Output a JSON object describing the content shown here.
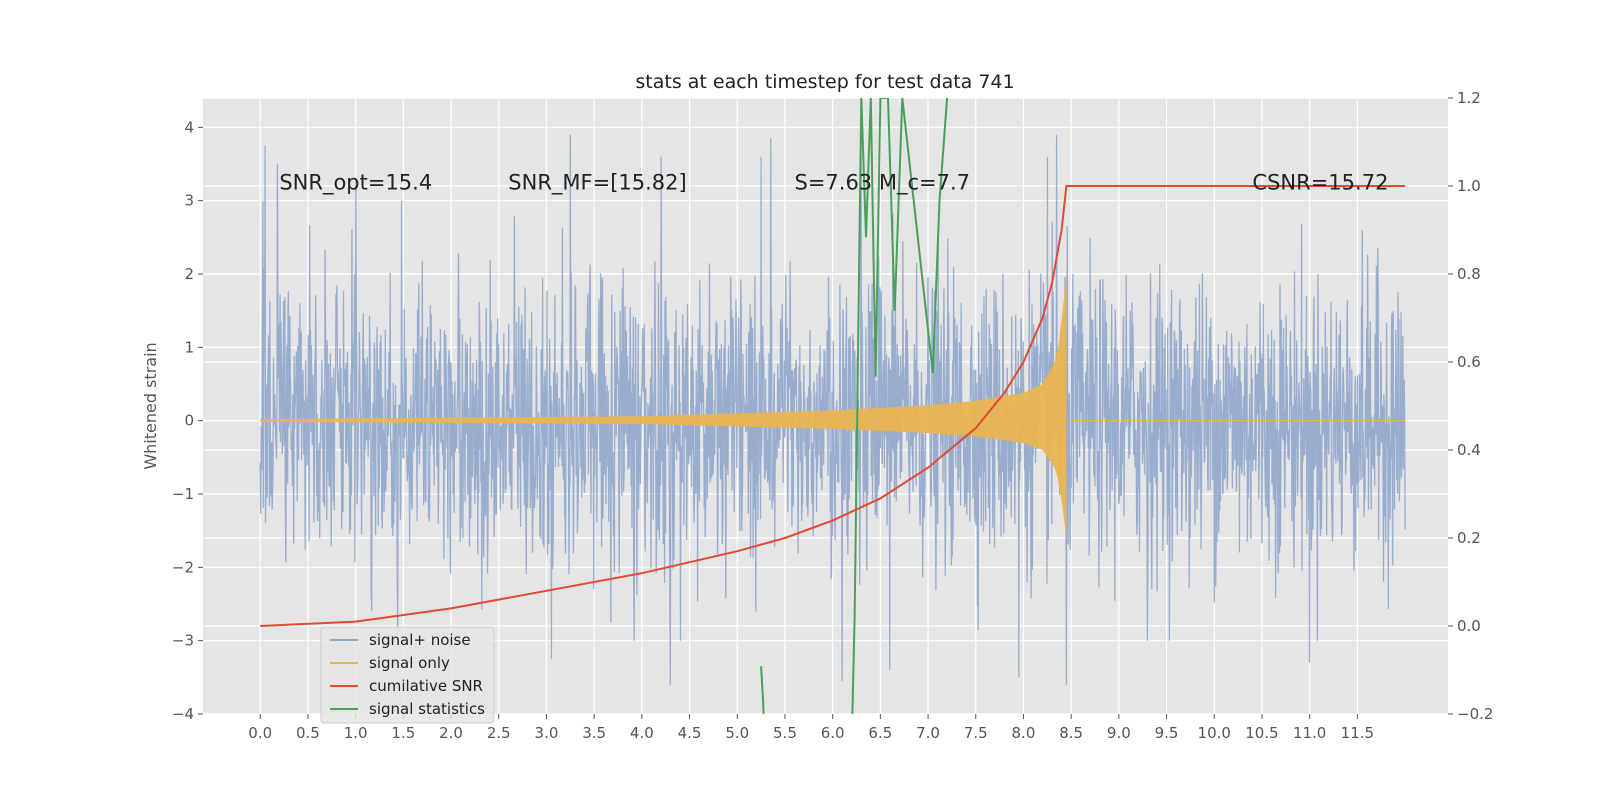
{
  "chart_data": {
    "type": "line",
    "title": "stats at each timestep for test data 741",
    "xlabel": "",
    "ylabel": "Whitened strain",
    "y2label": "",
    "xlim": [
      -0.6,
      12.45
    ],
    "ylim": [
      -4,
      4.4
    ],
    "y2lim": [
      -0.2,
      1.2
    ],
    "xticks": [
      0.0,
      0.5,
      1.0,
      1.5,
      2.0,
      2.5,
      3.0,
      3.5,
      4.0,
      4.5,
      5.0,
      5.5,
      6.0,
      6.5,
      7.0,
      7.5,
      8.0,
      8.5,
      9.0,
      9.5,
      10.0,
      10.5,
      11.0,
      11.5
    ],
    "xtick_labels": [
      "0.0",
      "0.5",
      "1.0",
      "1.5",
      "2.0",
      "2.5",
      "3.0",
      "3.5",
      "4.0",
      "4.5",
      "5.0",
      "5.5",
      "6.0",
      "6.5",
      "7.0",
      "7.5",
      "8.0",
      "8.5",
      "9.0",
      "9.5",
      "10.0",
      "10.5",
      "11.0",
      "11.5"
    ],
    "yticks": [
      -4,
      -3,
      -2,
      -1,
      0,
      1,
      2,
      3,
      4
    ],
    "ytick_labels": [
      "−4",
      "−3",
      "−2",
      "−1",
      "0",
      "1",
      "2",
      "3",
      "4"
    ],
    "y2ticks": [
      -0.2,
      0.0,
      0.2,
      0.4,
      0.6,
      0.8,
      1.0,
      1.2
    ],
    "y2tick_labels": [
      "−0.2",
      "0.0",
      "0.2",
      "0.4",
      "0.6",
      "0.8",
      "1.0",
      "1.2"
    ],
    "grid": true,
    "legend_position": "lower-left",
    "series": [
      {
        "name": "signal+ noise",
        "axis": "left",
        "color": "#8fa5cb",
        "x_range": [
          0.0,
          12.0
        ],
        "noise_std": 0.95,
        "spikes": [
          {
            "x": 0.05,
            "y": 3.75
          },
          {
            "x": 0.18,
            "y": 3.5
          },
          {
            "x": 1.0,
            "y": 3.3
          },
          {
            "x": 3.25,
            "y": 3.9
          },
          {
            "x": 4.2,
            "y": 3.6
          },
          {
            "x": 5.35,
            "y": 3.85
          },
          {
            "x": 5.25,
            "y": 3.6
          },
          {
            "x": 6.3,
            "y": 3.6
          },
          {
            "x": 8.25,
            "y": 3.6
          },
          {
            "x": 8.35,
            "y": 3.9
          },
          {
            "x": 4.3,
            "y": -3.6
          },
          {
            "x": 6.1,
            "y": -3.55
          },
          {
            "x": 8.45,
            "y": -3.6
          },
          {
            "x": 7.95,
            "y": -3.5
          },
          {
            "x": 11.0,
            "y": -3.3
          },
          {
            "x": 3.05,
            "y": -3.25
          },
          {
            "x": 6.6,
            "y": -3.4
          },
          {
            "x": 9.3,
            "y": -3.0
          }
        ]
      },
      {
        "name": "signal only",
        "axis": "left",
        "color": "#e8b450",
        "t_merge": 8.45,
        "t_end": 12.0,
        "envelope": [
          [
            0.0,
            0.02
          ],
          [
            4.0,
            0.06
          ],
          [
            6.0,
            0.14
          ],
          [
            7.0,
            0.21
          ],
          [
            7.5,
            0.27
          ],
          [
            8.0,
            0.38
          ],
          [
            8.2,
            0.5
          ],
          [
            8.35,
            0.85
          ],
          [
            8.42,
            1.6
          ],
          [
            8.45,
            2.0
          ]
        ]
      },
      {
        "name": "cumilative SNR",
        "axis": "right",
        "color": "#e24a33",
        "x": [
          0.0,
          1.0,
          2.0,
          3.0,
          4.0,
          5.0,
          5.5,
          6.0,
          6.5,
          7.0,
          7.5,
          7.8,
          8.0,
          8.2,
          8.3,
          8.4,
          8.45,
          12.0
        ],
        "y": [
          0.0,
          0.01,
          0.04,
          0.08,
          0.12,
          0.17,
          0.2,
          0.24,
          0.29,
          0.36,
          0.45,
          0.53,
          0.6,
          0.7,
          0.78,
          0.9,
          1.0,
          1.0
        ]
      },
      {
        "name": "signal statistics",
        "axis": "left",
        "color": "#4aa05a",
        "x": [
          5.25,
          5.27,
          5.29,
          6.2,
          6.23,
          6.3,
          6.35,
          6.4,
          6.45,
          6.5,
          6.58,
          6.65,
          6.73,
          7.05,
          7.12,
          7.2
        ],
        "y": [
          -3.35,
          -3.8,
          -4.4,
          -4.4,
          -2.7,
          4.4,
          2.5,
          4.4,
          0.6,
          4.4,
          4.4,
          1.5,
          4.4,
          0.65,
          3.0,
          4.4
        ]
      }
    ],
    "annotations": [
      {
        "x": 0.2,
        "y": 3.25,
        "text": "SNR_opt=15.4"
      },
      {
        "x": 2.6,
        "y": 3.25,
        "text": "SNR_MF=[15.82]"
      },
      {
        "x": 5.6,
        "y": 3.25,
        "text": "S=7.63   M_c=7.7"
      },
      {
        "x": 10.4,
        "y": 3.25,
        "text": "CSNR=15.72"
      }
    ]
  }
}
